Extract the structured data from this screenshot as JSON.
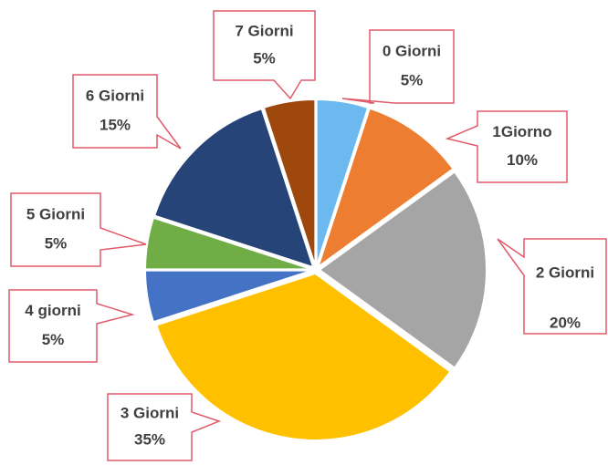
{
  "chart_data": {
    "type": "pie",
    "categories": [
      "0 Giorni",
      "1Giorno",
      "2 Giorni",
      "3 Giorni",
      "4 giorni",
      "5 Giorni",
      "6 Giorni",
      "7 Giorni"
    ],
    "values": [
      5,
      10,
      20,
      35,
      5,
      5,
      15,
      5
    ],
    "value_labels": [
      "5%",
      "10%",
      "20%",
      "35%",
      "5%",
      "5%",
      "15%",
      "5%"
    ],
    "colors": [
      "#6cb9f0",
      "#ed7d31",
      "#a5a5a5",
      "#ffc000",
      "#4472c4",
      "#70ad47",
      "#264478",
      "#9e480e"
    ]
  }
}
